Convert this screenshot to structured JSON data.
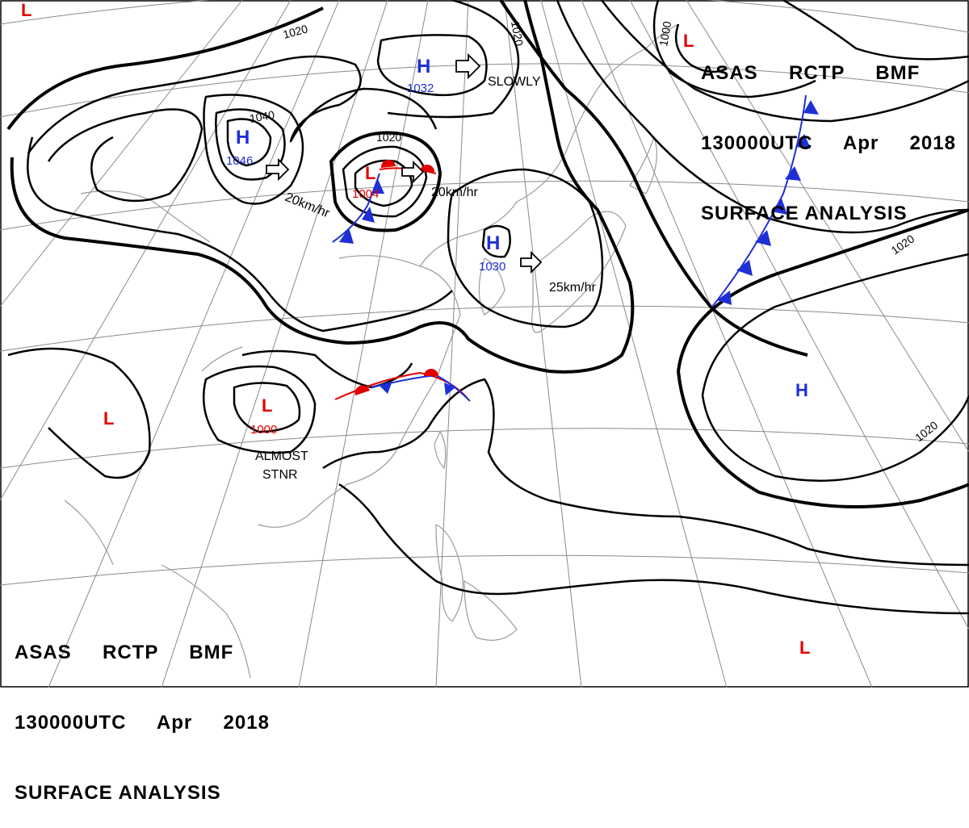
{
  "header": {
    "line1": "ASAS     RCTP     BMF",
    "line2": "130000UTC     Apr     2018",
    "line3": "SURFACE ANALYSIS"
  },
  "colors": {
    "high": "#1e2fd6",
    "low": "#e10000",
    "isobar": "#000000",
    "grid": "#8a8a8a",
    "coast": "#9a9a9a"
  },
  "pressure_centers": [
    {
      "kind": "high",
      "symbol": "H",
      "value": "1046"
    },
    {
      "kind": "high",
      "symbol": "H",
      "value": "1032"
    },
    {
      "kind": "high",
      "symbol": "H",
      "value": "1030"
    },
    {
      "kind": "high",
      "symbol": "H",
      "value": ""
    },
    {
      "kind": "low",
      "symbol": "L",
      "value": "1004"
    },
    {
      "kind": "low",
      "symbol": "L",
      "value": "1000"
    },
    {
      "kind": "low",
      "symbol": "L",
      "value": ""
    },
    {
      "kind": "low",
      "symbol": "L",
      "value": ""
    },
    {
      "kind": "low",
      "symbol": "L",
      "value": ""
    },
    {
      "kind": "low",
      "symbol": "L",
      "value": ""
    }
  ],
  "motion_labels": [
    "20km/hr",
    "20km/hr",
    "25km/hr",
    "SLOWLY",
    "ALMOST",
    "STNR"
  ],
  "isobar_labels": [
    "1020",
    "1040",
    "1020",
    "1020",
    "1000",
    "1020",
    "1020"
  ]
}
